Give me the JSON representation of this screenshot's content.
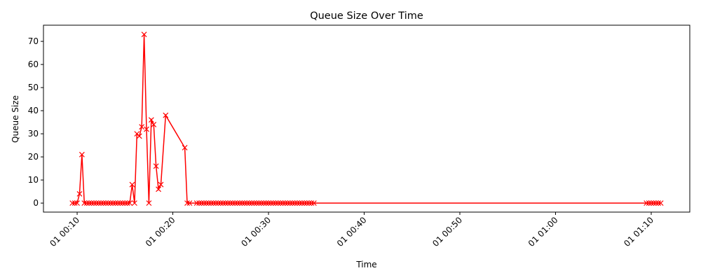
{
  "chart_data": {
    "type": "line",
    "title": "Queue Size Over Time",
    "x_label": "Time",
    "y_label": "Queue Size",
    "x": [
      9.5,
      9.75,
      10,
      10.25,
      10.5,
      10.75,
      11,
      11.25,
      11.5,
      11.75,
      12,
      12.25,
      12.5,
      12.75,
      13,
      13.25,
      13.5,
      13.75,
      14,
      14.25,
      14.5,
      14.75,
      15,
      15.25,
      15.5,
      15.75,
      16,
      16.25,
      16.5,
      16.75,
      17,
      17.25,
      17.5,
      17.75,
      18,
      18.25,
      18.5,
      18.75,
      19.25,
      21.25,
      21.5,
      21.75,
      22.5,
      22.75,
      23,
      23.25,
      23.5,
      23.75,
      24,
      24.25,
      24.5,
      24.75,
      25,
      25.25,
      25.5,
      25.75,
      26,
      26.25,
      26.5,
      26.75,
      27,
      27.25,
      27.5,
      27.75,
      28,
      28.25,
      28.5,
      28.75,
      29,
      29.25,
      29.5,
      29.75,
      30,
      30.25,
      30.5,
      30.75,
      31,
      31.25,
      31.5,
      31.75,
      32,
      32.25,
      32.5,
      32.75,
      33,
      33.25,
      33.5,
      33.75,
      34,
      34.25,
      34.5,
      34.75,
      69.5,
      69.75,
      70,
      70.25,
      70.5,
      70.75,
      71
    ],
    "series": [
      {
        "name": "Queue Size",
        "color": "#ff0000",
        "values": [
          0,
          0,
          0,
          4,
          21,
          0,
          0,
          0,
          0,
          0,
          0,
          0,
          0,
          0,
          0,
          0,
          0,
          0,
          0,
          0,
          0,
          0,
          0,
          0,
          0,
          8,
          0,
          30,
          29,
          33,
          73,
          32,
          0,
          36,
          34,
          16,
          6,
          8,
          38,
          24,
          0,
          0,
          0,
          0,
          0,
          0,
          0,
          0,
          0,
          0,
          0,
          0,
          0,
          0,
          0,
          0,
          0,
          0,
          0,
          0,
          0,
          0,
          0,
          0,
          0,
          0,
          0,
          0,
          0,
          0,
          0,
          0,
          0,
          0,
          0,
          0,
          0,
          0,
          0,
          0,
          0,
          0,
          0,
          0,
          0,
          0,
          0,
          0,
          0,
          0,
          0,
          0,
          0,
          0,
          0,
          0,
          0,
          0,
          0
        ]
      }
    ],
    "xlim": [
      6.48,
      74.03
    ],
    "ylim": [
      -3.9,
      77.0
    ],
    "xticks": [
      {
        "value": 10,
        "label": "01 00:10"
      },
      {
        "value": 20,
        "label": "01 00:20"
      },
      {
        "value": 30,
        "label": "01 00:30"
      },
      {
        "value": 40,
        "label": "01 00:40"
      },
      {
        "value": 50,
        "label": "01 00:50"
      },
      {
        "value": 60,
        "label": "01 01:00"
      },
      {
        "value": 70,
        "label": "01 01:10"
      }
    ],
    "yticks": [
      0,
      10,
      20,
      30,
      40,
      50,
      60,
      70
    ],
    "grid": false,
    "marker": "x"
  }
}
